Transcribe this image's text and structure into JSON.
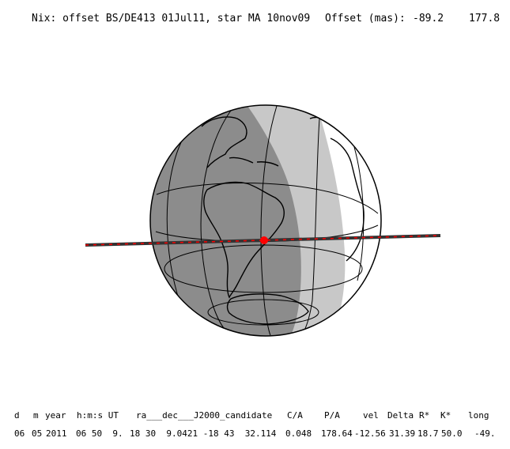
{
  "title": {
    "main": "Nix: offset BS/DE413 01Jul11, star MA 10nov09",
    "offset_label": "Offset (mas):",
    "offset_x": "-89.2",
    "offset_y": "177.8"
  },
  "colors": {
    "night": "#8c8c8c",
    "twilight": "#c8c8c8",
    "day": "#ffffff",
    "coast": "#000000",
    "shadow_path": "#ff0000",
    "path_band": "#333333"
  },
  "table": {
    "headers": [
      "d",
      "m",
      "year",
      "h:m:s UT",
      "ra___dec___J2000_candidate",
      "C/A",
      "P/A",
      "vel",
      "Delta",
      "R*",
      "K*",
      "long"
    ],
    "values": [
      "06",
      "05",
      "2011",
      "06 50  9.",
      "18 30  9.0421 -18 43  32.114",
      "0.048",
      "178.64",
      "-12.56",
      "31.39",
      "18.7",
      "50.0",
      "-49."
    ]
  }
}
